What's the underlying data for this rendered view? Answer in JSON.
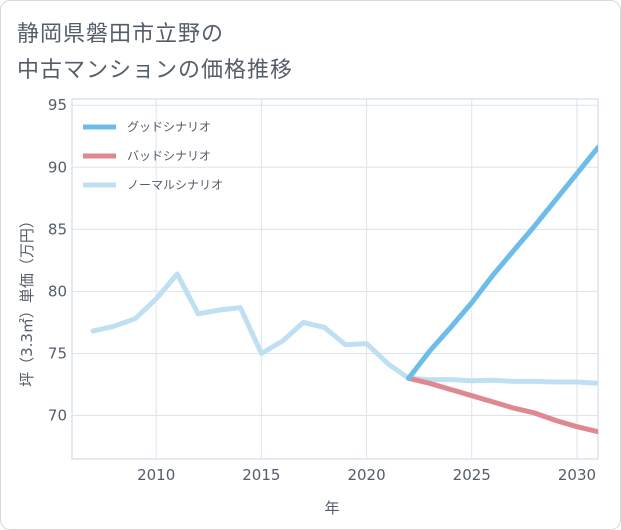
{
  "title_lines": [
    "静岡県磐田市立野の",
    "中古マンションの価格推移"
  ],
  "chart_data": {
    "type": "line",
    "title": "静岡県磐田市立野の中古マンションの価格推移",
    "xlabel": "年",
    "ylabel": "坪（3.3㎡）単価（万円）",
    "xlim": [
      2006,
      2031
    ],
    "ylim": [
      66.5,
      95.5
    ],
    "x_ticks": [
      2010,
      2015,
      2020,
      2025,
      2030
    ],
    "y_ticks": [
      70,
      75,
      80,
      85,
      90,
      95
    ],
    "legend_position": "top-left",
    "series": [
      {
        "name": "グッドシナリオ",
        "color": "#6dbce9",
        "points": [
          [
            2022,
            73.0
          ],
          [
            2023,
            75.2
          ],
          [
            2024,
            77.1
          ],
          [
            2025,
            79.1
          ],
          [
            2026,
            81.3
          ],
          [
            2027,
            83.3
          ],
          [
            2028,
            85.3
          ],
          [
            2029,
            87.4
          ],
          [
            2030,
            89.5
          ],
          [
            2031,
            91.6
          ]
        ]
      },
      {
        "name": "バッドシナリオ",
        "color": "#e0888f",
        "points": [
          [
            2022,
            73.0
          ],
          [
            2023,
            72.6
          ],
          [
            2024,
            72.1
          ],
          [
            2025,
            71.6
          ],
          [
            2026,
            71.1
          ],
          [
            2027,
            70.6
          ],
          [
            2028,
            70.2
          ],
          [
            2029,
            69.6
          ],
          [
            2030,
            69.1
          ],
          [
            2031,
            68.7
          ]
        ]
      },
      {
        "name": "ノーマルシナリオ",
        "color": "#bfe0f2",
        "points": [
          [
            2007,
            76.8
          ],
          [
            2008,
            77.2
          ],
          [
            2009,
            77.8
          ],
          [
            2010,
            79.4
          ],
          [
            2011,
            81.4
          ],
          [
            2012,
            78.2
          ],
          [
            2013,
            78.5
          ],
          [
            2014,
            78.7
          ],
          [
            2015,
            75.0
          ],
          [
            2016,
            76.0
          ],
          [
            2017,
            77.5
          ],
          [
            2018,
            77.1
          ],
          [
            2019,
            75.7
          ],
          [
            2020,
            75.8
          ],
          [
            2021,
            74.2
          ],
          [
            2022,
            73.0
          ],
          [
            2023,
            72.9
          ],
          [
            2024,
            72.9
          ],
          [
            2025,
            72.8
          ],
          [
            2026,
            72.85
          ],
          [
            2027,
            72.75
          ],
          [
            2028,
            72.75
          ],
          [
            2029,
            72.7
          ],
          [
            2030,
            72.7
          ],
          [
            2031,
            72.6
          ]
        ]
      }
    ]
  }
}
